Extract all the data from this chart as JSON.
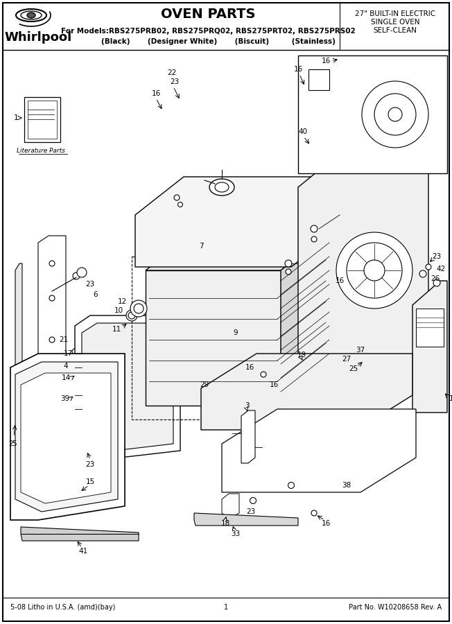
{
  "title": "OVEN PARTS",
  "models_line": "For Models:RBS275PRB02, RBS275PRQ02, RBS275PRT02, RBS275PRS02",
  "colors_line": "        (Black)       (Designer White)       (Biscuit)         (Stainless)",
  "right_header1": "27\" BUILT-IN ELECTRIC",
  "right_header2": "SINGLE OVEN",
  "right_header3": "SELF-CLEAN",
  "footer_left": "5-08 Litho in U.S.A. (amd)(bay)",
  "footer_center": "1",
  "footer_right": "Part No. W10208658 Rev. A",
  "bg_color": "#ffffff",
  "figsize": [
    6.52,
    9.0
  ],
  "dpi": 100
}
